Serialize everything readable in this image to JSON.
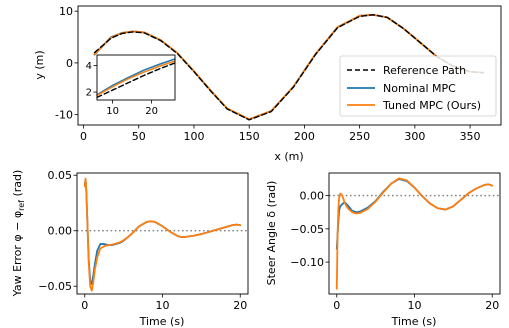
{
  "colors": {
    "reference": "#000000",
    "nominal": "#1f77b4",
    "tuned": "#ff7f0e",
    "zero_line": "#7f7f7f"
  },
  "chart_data": [
    {
      "type": "line",
      "xlabel": "x (m)",
      "ylabel": "y (m)",
      "xlim": [
        -5,
        378
      ],
      "ylim": [
        -12,
        11
      ],
      "xticks": [
        0,
        50,
        100,
        150,
        200,
        250,
        300,
        350
      ],
      "yticks": [
        -10,
        0,
        10
      ],
      "grid": false,
      "legend_position": "lower-right",
      "legend": [
        "Reference Path",
        "Nominal MPC",
        "Tuned MPC (Ours)"
      ],
      "series": [
        {
          "name": "Reference Path",
          "style": "dashed",
          "x": [
            10,
            25,
            35,
            45,
            55,
            70,
            85,
            100,
            115,
            130,
            150,
            170,
            190,
            210,
            230,
            250,
            262,
            275,
            290,
            305,
            320,
            335,
            350,
            362
          ],
          "y": [
            2.0,
            4.8,
            5.7,
            6.0,
            5.8,
            4.3,
            1.8,
            -1.7,
            -5.4,
            -8.9,
            -11.0,
            -9.4,
            -4.7,
            1.6,
            6.8,
            9.0,
            9.3,
            8.8,
            6.6,
            3.9,
            1.2,
            -0.7,
            -1.7,
            -1.9
          ]
        },
        {
          "name": "Nominal MPC",
          "style": "solid",
          "x": [
            10,
            25,
            35,
            45,
            55,
            70,
            85,
            100,
            115,
            130,
            150,
            170,
            190,
            210,
            230,
            250,
            262,
            275,
            290,
            305,
            320,
            335,
            350,
            362
          ],
          "y": [
            1.6,
            5.0,
            5.8,
            6.1,
            5.9,
            4.4,
            1.9,
            -1.6,
            -5.3,
            -8.8,
            -10.9,
            -9.3,
            -4.6,
            1.7,
            6.9,
            9.1,
            9.3,
            8.8,
            6.6,
            3.9,
            1.2,
            -0.7,
            -1.7,
            -1.9
          ]
        },
        {
          "name": "Tuned MPC (Ours)",
          "style": "solid",
          "x": [
            10,
            25,
            35,
            45,
            55,
            70,
            85,
            100,
            115,
            130,
            150,
            170,
            190,
            210,
            230,
            250,
            262,
            275,
            290,
            305,
            320,
            335,
            350,
            362
          ],
          "y": [
            1.7,
            4.9,
            5.8,
            6.1,
            5.9,
            4.4,
            1.9,
            -1.6,
            -5.3,
            -8.8,
            -10.9,
            -9.3,
            -4.6,
            1.7,
            6.9,
            9.1,
            9.3,
            8.8,
            6.6,
            3.9,
            1.2,
            -0.7,
            -1.7,
            -1.9
          ]
        }
      ],
      "inset": {
        "xlim": [
          6,
          26
        ],
        "ylim": [
          1.4,
          4.8
        ],
        "xticks": [
          10,
          20
        ],
        "yticks": [
          2,
          4
        ],
        "series": [
          {
            "name": "Reference Path",
            "x": [
              6,
              10,
              14,
              18,
              22,
              26
            ],
            "y": [
              1.6,
              2.15,
              2.7,
              3.25,
              3.75,
              4.2
            ]
          },
          {
            "name": "Nominal MPC",
            "x": [
              6,
              10,
              14,
              18,
              22,
              26
            ],
            "y": [
              1.8,
              2.5,
              3.1,
              3.65,
              4.1,
              4.5
            ]
          },
          {
            "name": "Tuned MPC (Ours)",
            "x": [
              6,
              10,
              14,
              18,
              22,
              26
            ],
            "y": [
              1.75,
              2.4,
              3.0,
              3.5,
              3.95,
              4.35
            ]
          }
        ]
      }
    },
    {
      "type": "line",
      "xlabel": "Time (s)",
      "ylabel": "Yaw Error φ − φ",
      "ylabel_subscript": "ref",
      "ylabel_suffix": " (rad)",
      "xlim": [
        -1,
        21
      ],
      "ylim": [
        -0.057,
        0.052
      ],
      "xticks": [
        0,
        10,
        20
      ],
      "yticks": [
        -0.05,
        0.0,
        0.05
      ],
      "ytick_labels": [
        "−0.05",
        "0.00",
        "0.05"
      ],
      "zero_line": 0.0,
      "series": [
        {
          "name": "Nominal MPC",
          "x": [
            0.0,
            0.1,
            0.2,
            0.35,
            0.5,
            0.7,
            0.9,
            1.1,
            1.3,
            1.6,
            2.0,
            2.5,
            3.0,
            3.5,
            4.0,
            4.5,
            5.0,
            5.5,
            6.0,
            7.0,
            8.0,
            8.5,
            9.0,
            10.0,
            11.0,
            12.0,
            12.5,
            13.0,
            14.0,
            15.0,
            16.0,
            17.0,
            18.0,
            19.0,
            19.5,
            20.0
          ],
          "y": [
            0.042,
            0.046,
            0.035,
            0.005,
            -0.025,
            -0.045,
            -0.048,
            -0.04,
            -0.03,
            -0.018,
            -0.012,
            -0.012,
            -0.013,
            -0.013,
            -0.012,
            -0.011,
            -0.009,
            -0.006,
            -0.003,
            0.004,
            0.008,
            0.0085,
            0.008,
            0.004,
            -0.001,
            -0.005,
            -0.0058,
            -0.0055,
            -0.0045,
            -0.003,
            -0.001,
            0.001,
            0.003,
            0.005,
            0.0055,
            0.005
          ]
        },
        {
          "name": "Tuned MPC (Ours)",
          "x": [
            0.0,
            0.1,
            0.2,
            0.35,
            0.5,
            0.7,
            0.9,
            1.1,
            1.3,
            1.6,
            2.0,
            2.5,
            3.0,
            3.5,
            4.0,
            4.5,
            5.0,
            5.5,
            6.0,
            7.0,
            8.0,
            8.5,
            9.0,
            10.0,
            11.0,
            12.0,
            12.5,
            13.0,
            14.0,
            15.0,
            16.0,
            17.0,
            18.0,
            19.0,
            19.5,
            20.0
          ],
          "y": [
            0.04,
            0.047,
            0.036,
            0.005,
            -0.028,
            -0.05,
            -0.054,
            -0.046,
            -0.035,
            -0.024,
            -0.016,
            -0.014,
            -0.013,
            -0.0125,
            -0.0115,
            -0.0105,
            -0.0085,
            -0.006,
            -0.003,
            0.004,
            0.008,
            0.0085,
            0.008,
            0.004,
            -0.001,
            -0.005,
            -0.0058,
            -0.0055,
            -0.0045,
            -0.003,
            -0.001,
            0.001,
            0.003,
            0.005,
            0.0055,
            0.005
          ]
        }
      ]
    },
    {
      "type": "line",
      "xlabel": "Time (s)",
      "ylabel": "Steer Angle δ (rad)",
      "xlim": [
        -1,
        21
      ],
      "ylim": [
        -0.148,
        0.034
      ],
      "xticks": [
        0,
        10,
        20
      ],
      "yticks": [
        -0.1,
        -0.05,
        0.0
      ],
      "ytick_labels": [
        "−0.10",
        "−0.05",
        "0.00"
      ],
      "zero_line": 0.0,
      "series": [
        {
          "name": "Nominal MPC",
          "x": [
            0.0,
            0.1,
            0.2,
            0.3,
            0.45,
            0.6,
            0.8,
            1.0,
            1.2,
            1.5,
            2.0,
            2.5,
            3.0,
            4.0,
            5.0,
            6.0,
            7.0,
            8.0,
            9.0,
            10.0,
            11.0,
            12.0,
            13.0,
            14.0,
            15.0,
            16.0,
            17.0,
            18.0,
            19.0,
            19.5,
            20.0
          ],
          "y": [
            -0.08,
            -0.06,
            -0.04,
            -0.022,
            -0.016,
            -0.014,
            -0.012,
            -0.01,
            -0.012,
            -0.016,
            -0.023,
            -0.025,
            -0.024,
            -0.018,
            -0.008,
            0.006,
            0.018,
            0.025,
            0.022,
            0.012,
            -0.001,
            -0.012,
            -0.019,
            -0.021,
            -0.016,
            -0.006,
            0.004,
            0.011,
            0.016,
            0.017,
            0.015
          ]
        },
        {
          "name": "Tuned MPC (Ours)",
          "x": [
            0.0,
            0.05,
            0.1,
            0.2,
            0.3,
            0.45,
            0.6,
            0.8,
            1.0,
            1.2,
            1.5,
            2.0,
            2.5,
            3.0,
            4.0,
            5.0,
            6.0,
            7.0,
            8.0,
            9.0,
            10.0,
            11.0,
            12.0,
            13.0,
            14.0,
            15.0,
            16.0,
            17.0,
            18.0,
            19.0,
            19.5,
            20.0
          ],
          "y": [
            -0.14,
            -0.1,
            -0.06,
            -0.02,
            -0.004,
            0.003,
            0.002,
            -0.003,
            -0.01,
            -0.015,
            -0.02,
            -0.025,
            -0.027,
            -0.026,
            -0.02,
            -0.009,
            0.005,
            0.018,
            0.026,
            0.023,
            0.012,
            -0.001,
            -0.012,
            -0.019,
            -0.021,
            -0.016,
            -0.006,
            0.004,
            0.011,
            0.016,
            0.017,
            0.015
          ]
        }
      ]
    }
  ]
}
